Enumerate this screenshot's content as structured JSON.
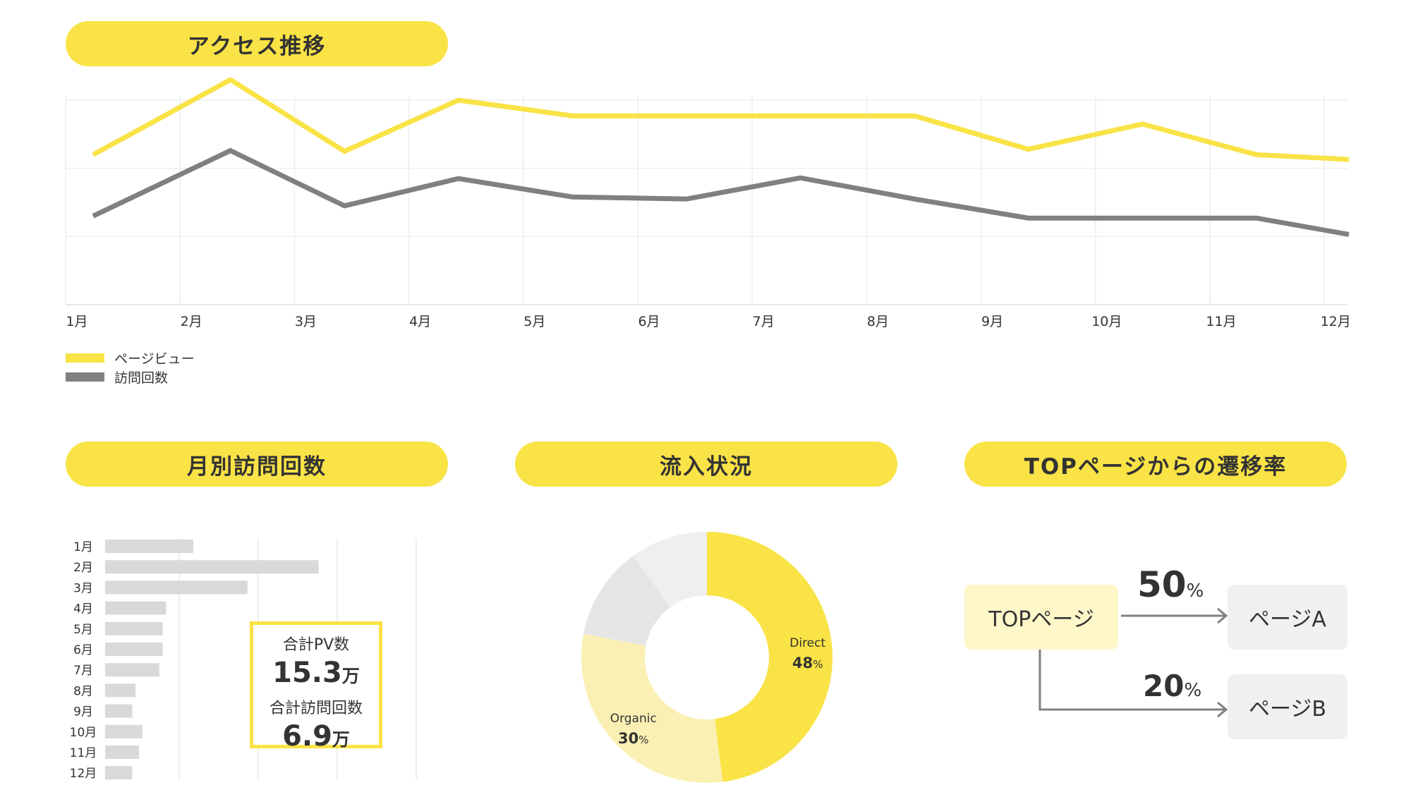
{
  "sections": {
    "access_trend": "アクセス推移",
    "monthly_visits": "月別訪問回数",
    "traffic_sources": "流入状況",
    "top_transition": "TOPページからの遷移率"
  },
  "colors": {
    "yellow": "#f9e346",
    "gray_line": "#808080",
    "light_yellow": "#faf0b4",
    "pale_yellow": "#fdf7c9",
    "bar_gray": "#d9d9d9",
    "node_gray": "#f0f0f0"
  },
  "chart_data": [
    {
      "type": "line",
      "categories": [
        "1月",
        "2月",
        "3月",
        "4月",
        "5月",
        "6月",
        "7月",
        "8月",
        "9月",
        "10月",
        "11月",
        "12月"
      ],
      "series": [
        {
          "name": "ページビュー",
          "values": [
            22.0,
            33.0,
            22.5,
            30.0,
            27.7,
            27.7,
            27.7,
            27.7,
            22.8,
            26.5,
            22.0,
            21.3
          ]
        },
        {
          "name": "訪問回数",
          "values": [
            13.0,
            22.6,
            14.5,
            18.5,
            15.8,
            15.5,
            18.6,
            15.5,
            12.7,
            12.7,
            12.7,
            10.3
          ]
        }
      ],
      "ylim": [
        0,
        30
      ],
      "grid": true,
      "legend": "bottom-left"
    },
    {
      "type": "bar",
      "orientation": "horizontal",
      "categories": [
        "1月",
        "2月",
        "3月",
        "4月",
        "5月",
        "6月",
        "7月",
        "8月",
        "9月",
        "10月",
        "11月",
        "12月"
      ],
      "values": [
        26,
        63,
        42,
        18,
        17,
        17,
        16,
        9,
        8,
        11,
        10,
        8
      ],
      "xlim": [
        0,
        92
      ],
      "grid": true,
      "totals": {
        "pv_label": "合計PV数",
        "pv_value": "15.3",
        "pv_unit": "万",
        "visits_label": "合計訪問回数",
        "visits_value": "6.9",
        "visits_unit": "万"
      }
    },
    {
      "type": "pie",
      "donut": true,
      "slices": [
        {
          "label": "Direct",
          "value": 48,
          "value_text": "48",
          "unit": "%",
          "color": "#f9e346"
        },
        {
          "label": "Organic",
          "value": 30,
          "value_text": "30",
          "unit": "%",
          "color": "#faf0b4"
        },
        {
          "label": "",
          "value": 12,
          "color": "#e5e5e5"
        },
        {
          "label": "",
          "value": 10,
          "color": "#efefef"
        }
      ]
    }
  ],
  "transition": {
    "source": "TOPページ",
    "targets": [
      {
        "label": "ページA",
        "value": "50",
        "unit": "%"
      },
      {
        "label": "ページB",
        "value": "20",
        "unit": "%"
      }
    ]
  }
}
